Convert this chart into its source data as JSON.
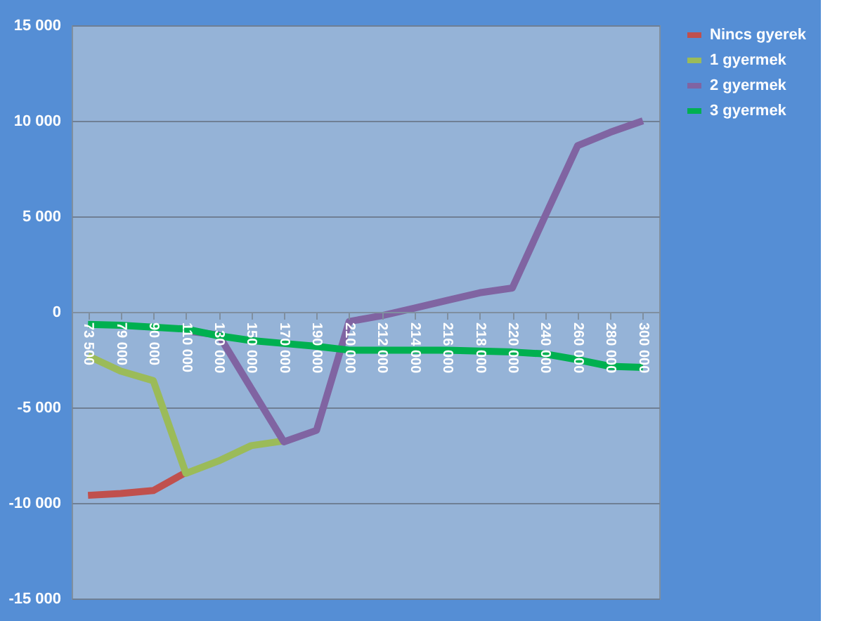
{
  "chart_data": {
    "type": "line",
    "categories": [
      "73 500",
      "79 000",
      "90 000",
      "110 000",
      "130 000",
      "150 000",
      "170 000",
      "190 000",
      "210 000",
      "212 000",
      "214 000",
      "216 000",
      "218 000",
      "220 000",
      "240 000",
      "260 000",
      "280 000",
      "300 000"
    ],
    "series": [
      {
        "name": "Nincs gyerek",
        "color": "#c0504d",
        "values": [
          -9600,
          -9500,
          -9350,
          -8400,
          null,
          null,
          null,
          null,
          null,
          null,
          null,
          null,
          null,
          null,
          null,
          null,
          null,
          null
        ]
      },
      {
        "name": "1 gyermek",
        "color": "#9bbb59",
        "values": [
          -2300,
          -3100,
          -3600,
          -8450,
          -7800,
          -7000,
          -6750,
          null,
          null,
          null,
          null,
          null,
          null,
          null,
          null,
          null,
          null,
          null
        ]
      },
      {
        "name": "2 gyermek",
        "color": "#8064a2",
        "values": [
          null,
          null,
          null,
          -1000,
          -1200,
          -4000,
          -6800,
          -6200,
          -500,
          -200,
          200,
          600,
          1000,
          1250,
          5000,
          8700,
          9400,
          10000
        ]
      },
      {
        "name": "3 gyermek",
        "color": "#00b050",
        "values": [
          -650,
          -700,
          -800,
          -900,
          -1250,
          -1500,
          -1650,
          -1800,
          -2000,
          -2000,
          -2000,
          -2000,
          -2050,
          -2100,
          -2200,
          -2500,
          -2850,
          -2900
        ]
      }
    ],
    "ylim": [
      -15000,
      15000
    ],
    "yticks": [
      {
        "value": -15000,
        "label": "-15 000"
      },
      {
        "value": -10000,
        "label": "-10 000"
      },
      {
        "value": -5000,
        "label": "-5 000"
      },
      0,
      {
        "value": 5000,
        "label": "5 000"
      },
      {
        "value": 10000,
        "label": "10 000"
      },
      {
        "value": 15000,
        "label": "15 000"
      }
    ],
    "grid": "y",
    "legend": "right",
    "marker": "none",
    "line_style": "solid"
  }
}
